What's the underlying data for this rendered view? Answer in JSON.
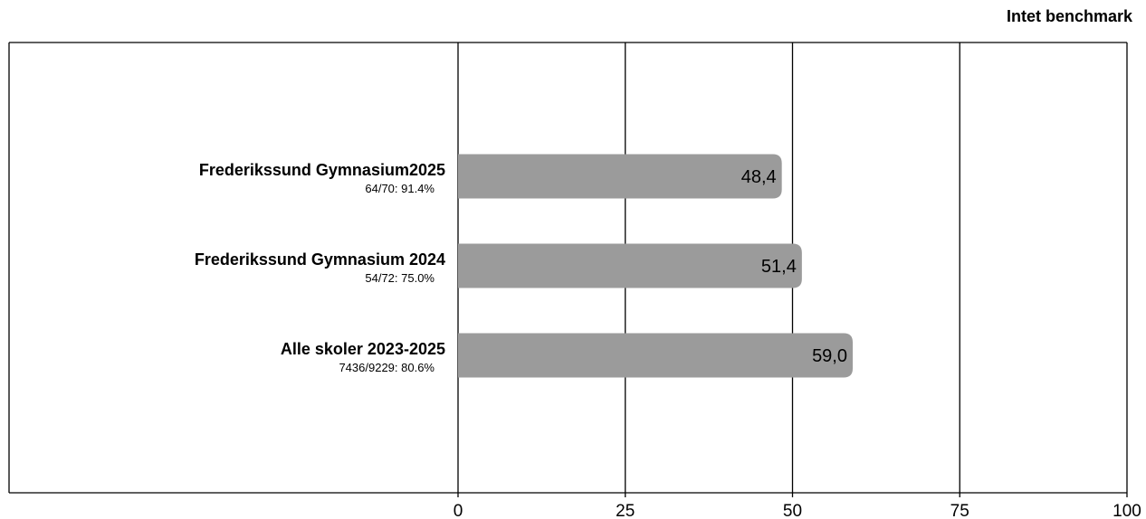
{
  "header": {
    "benchmark_label": "Intet benchmark"
  },
  "chart_data": {
    "type": "bar",
    "orientation": "horizontal",
    "categories": [
      "Frederikssund Gymnasium2025",
      "Frederikssund Gymnasium 2024",
      "Alle skoler 2023-2025"
    ],
    "sublabels": [
      "64/70: 91.4%",
      "54/72: 75.0%",
      "7436/9229: 80.6%"
    ],
    "values": [
      48.4,
      51.4,
      59.0
    ],
    "value_labels": [
      "48,4",
      "51,4",
      "59,0"
    ],
    "xlim": [
      0,
      100
    ],
    "xticks": [
      0,
      25,
      50,
      75,
      100
    ],
    "xtick_labels": [
      "0",
      "25",
      "50",
      "75",
      "100"
    ],
    "grid": true,
    "bar_color": "#9b9b9b"
  }
}
